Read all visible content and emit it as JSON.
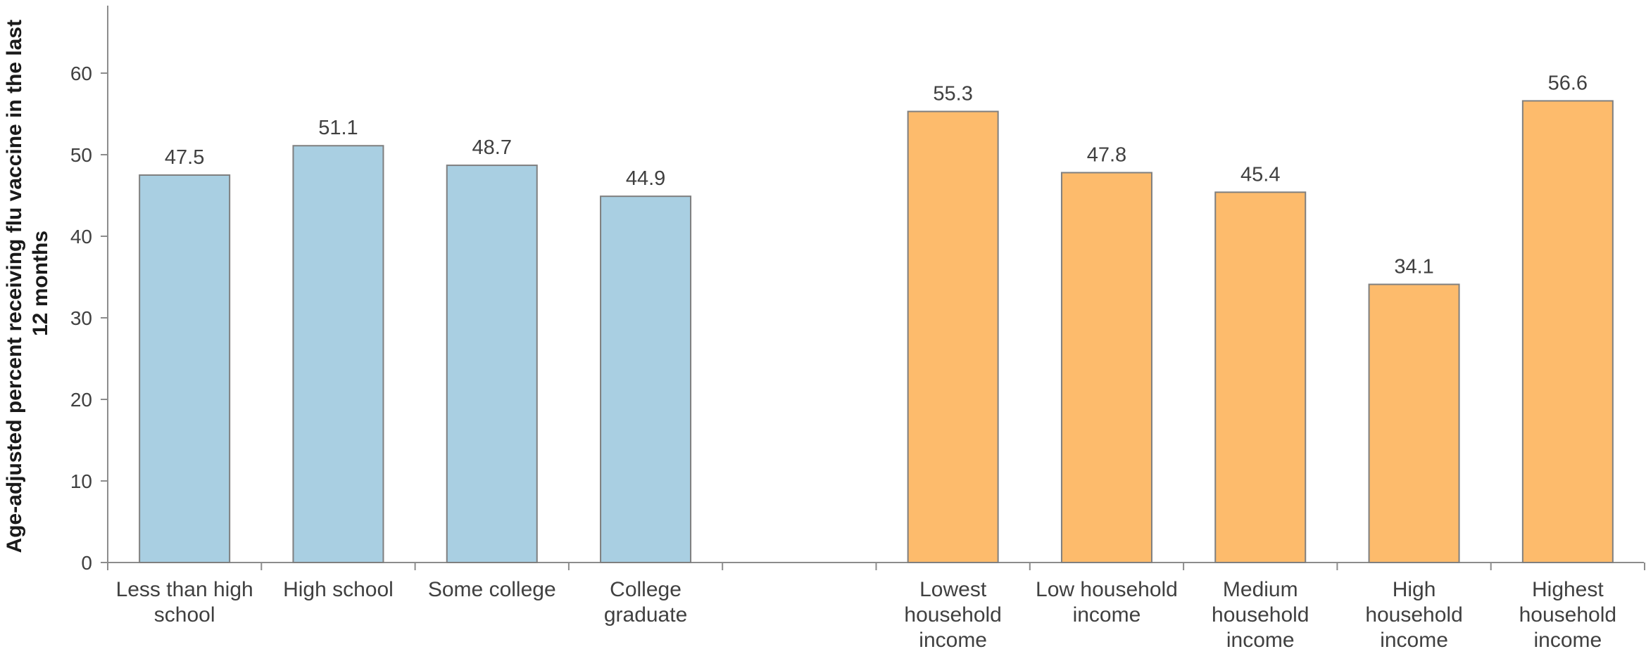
{
  "chart_data": {
    "type": "bar",
    "ylabel": "Age-adjusted percent receiving flu vaccine in the last 12 months",
    "ylabel_lines": [
      "Age-adjusted percent receiving flu vaccine in the last",
      "12 months"
    ],
    "ylim": [
      0,
      70
    ],
    "yticks": [
      0,
      10,
      20,
      30,
      40,
      50,
      60
    ],
    "grid": false,
    "legend": "none",
    "groups": [
      {
        "color": "#a9cfe2",
        "categories": [
          [
            "Less than high",
            "school"
          ],
          [
            "High school"
          ],
          [
            "Some college"
          ],
          [
            "College",
            "graduate"
          ]
        ],
        "values": [
          47.5,
          51.1,
          48.7,
          44.9
        ]
      },
      {
        "color": "#fdbb6c",
        "categories": [
          [
            "Lowest",
            "household",
            "income"
          ],
          [
            "Low household",
            "income"
          ],
          [
            "Medium",
            "household",
            "income"
          ],
          [
            "High",
            "household",
            "income"
          ],
          [
            "Highest",
            "household",
            "income"
          ]
        ],
        "values": [
          55.3,
          47.8,
          45.4,
          34.1,
          56.6
        ]
      }
    ],
    "bar_stroke": "#7f7f7f",
    "axis_color": "#8c8c8c"
  }
}
